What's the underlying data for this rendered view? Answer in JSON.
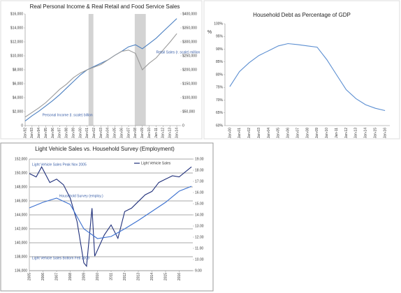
{
  "chart_data": [
    {
      "type": "line",
      "title": "Real Personal Income & Real Retail and Food Service Sales",
      "x": [
        1992,
        1993,
        1994,
        1995,
        1996,
        1997,
        1998,
        1999,
        2000,
        2001,
        2002,
        2003,
        2004,
        2005,
        2006,
        2007,
        2008,
        2009,
        2010,
        2011,
        2012,
        2013,
        2014
      ],
      "xlim": [
        1992,
        2014.5
      ],
      "xticks": [
        {
          "value": 1992,
          "label": "Jan-92"
        },
        {
          "value": 1993,
          "label": "Jan-93"
        },
        {
          "value": 1994,
          "label": "Jan-94"
        },
        {
          "value": 1995,
          "label": "Jan-95"
        },
        {
          "value": 1996,
          "label": "Jan-96"
        },
        {
          "value": 1997,
          "label": "Jan-97"
        },
        {
          "value": 1998,
          "label": "Jan-98"
        },
        {
          "value": 1999,
          "label": "Jan-99"
        },
        {
          "value": 2000,
          "label": "Jan-00"
        },
        {
          "value": 2001,
          "label": "Jan-01"
        },
        {
          "value": 2002,
          "label": "Jan-02"
        },
        {
          "value": 2003,
          "label": "Jan-03"
        },
        {
          "value": 2004,
          "label": "Jan-04"
        },
        {
          "value": 2005,
          "label": "Jan-05"
        },
        {
          "value": 2006,
          "label": "Jan-06"
        },
        {
          "value": 2007,
          "label": "Jan-07"
        },
        {
          "value": 2008,
          "label": "Jan-08"
        },
        {
          "value": 2009,
          "label": "Jan-09"
        },
        {
          "value": 2010,
          "label": "Jan-10"
        },
        {
          "value": 2011,
          "label": "Jan-11"
        },
        {
          "value": 2012,
          "label": "Jan-12"
        },
        {
          "value": 2013,
          "label": "Jan-13"
        },
        {
          "value": 2014,
          "label": "Jan-14"
        }
      ],
      "ylim": [
        0,
        16000
      ],
      "yticks": [
        0,
        {
          "value": 2000,
          "label": "$2,000"
        },
        {
          "value": 4000,
          "label": "$4,000"
        },
        {
          "value": 6000,
          "label": "$6,000"
        },
        {
          "value": 8000,
          "label": "$8,000"
        },
        {
          "value": 10000,
          "label": "$10,000"
        },
        {
          "value": 12000,
          "label": "$12,000"
        },
        {
          "value": 14000,
          "label": "$14,000"
        },
        {
          "value": 16000,
          "label": "$16,000"
        }
      ],
      "y2lim": [
        0,
        400000
      ],
      "y2ticks": [
        0,
        {
          "value": 50000,
          "label": "$50,000"
        },
        {
          "value": 100000,
          "label": "$100,000"
        },
        {
          "value": 150000,
          "label": "$150,000"
        },
        {
          "value": 200000,
          "label": "$200,000"
        },
        {
          "value": 250000,
          "label": "$250,000"
        },
        {
          "value": 300000,
          "label": "$300,000"
        },
        {
          "value": 350000,
          "label": "$350,000"
        },
        {
          "value": 400000,
          "label": "$400,000"
        }
      ],
      "shaded_ranges": [
        [
          2001.2,
          2001.9
        ],
        [
          2007.9,
          2009.5
        ]
      ],
      "shade_color": "#d3d3d3",
      "series": [
        {
          "name": "Personal Income (l. scale) billion",
          "color": "#4a7fc1",
          "values": [
            660,
            1410,
            2070,
            2820,
            3580,
            4420,
            5370,
            6310,
            7250,
            8000,
            8470,
            8940,
            9410,
            10070,
            10640,
            11290,
            11580,
            11010,
            11760,
            12520,
            13460,
            14400,
            15340
          ]
        },
        {
          "name": "Retail Sales (r. scale) million",
          "color": "#9a9a9a",
          "axis": "y2",
          "values": [
            30600,
            47100,
            63500,
            82400,
            105900,
            129400,
            148200,
            171800,
            188200,
            200000,
            209400,
            218800,
            235300,
            251800,
            265900,
            270600,
            258800,
            200000,
            223500,
            242400,
            270600,
            298800,
            329400
          ]
        }
      ],
      "annotations": [
        {
          "text": "Personal Income (l. scale) billion",
          "x": 1994.5,
          "y": 1500
        },
        {
          "text": "Retail Sales (r. scale) million",
          "x": 2011,
          "y": 10500
        }
      ]
    },
    {
      "type": "line",
      "title": "Household Debt as Percentage of GDP",
      "ylabel": "%",
      "categories": [
        "Jan-00",
        "Jan-01",
        "Jan-02",
        "Jan-03",
        "Jan-04",
        "Jan-05",
        "Jan-06",
        "Jan-07",
        "Jan-08",
        "Jan-09",
        "Jan-10",
        "Jan-11",
        "Jan-12",
        "Jan-13",
        "Jan-14",
        "Jan-15",
        "Jan-16"
      ],
      "ylim": [
        60,
        100
      ],
      "yticks": [
        {
          "value": 60,
          "label": "60%"
        },
        {
          "value": 65,
          "label": "65%"
        },
        {
          "value": 70,
          "label": "70%"
        },
        {
          "value": 75,
          "label": "75%"
        },
        {
          "value": 80,
          "label": "80%"
        },
        {
          "value": 85,
          "label": "85%"
        },
        {
          "value": 90,
          "label": "90%"
        },
        {
          "value": 95,
          "label": "95%"
        },
        {
          "value": 100,
          "label": "100%"
        }
      ],
      "series": [
        {
          "name": "Household Debt",
          "color": "#5b8ed1",
          "values": [
            75.3,
            81.2,
            84.7,
            87.5,
            89.4,
            91.3,
            92.2,
            91.8,
            91.3,
            90.8,
            85.9,
            80.0,
            74.1,
            70.6,
            68.2,
            66.8,
            65.9
          ]
        }
      ]
    },
    {
      "type": "line",
      "title": "Light Vehicle Sales vs. Household Survey (Employment)",
      "grid": true,
      "xlim": [
        2005,
        2017
      ],
      "xticks": [
        2005,
        2006,
        2007,
        2008,
        2009,
        2010,
        2011,
        2012,
        2013,
        2014,
        2015,
        2016
      ],
      "ylim": [
        136000,
        152000
      ],
      "yticks": [
        {
          "value": 136000,
          "label": "136,000"
        },
        {
          "value": 138000,
          "label": "138,000"
        },
        {
          "value": 140000,
          "label": "140,000"
        },
        {
          "value": 142000,
          "label": "142,000"
        },
        {
          "value": 144000,
          "label": "144,000"
        },
        {
          "value": 146000,
          "label": "146,000"
        },
        {
          "value": 148000,
          "label": "148,000"
        },
        {
          "value": 150000,
          "label": "150,000"
        },
        {
          "value": 152000,
          "label": "152,000"
        }
      ],
      "y2lim": [
        9,
        19
      ],
      "y2ticks": [
        {
          "value": 9,
          "label": "9.00"
        },
        {
          "value": 10,
          "label": "10.00"
        },
        {
          "value": 11,
          "label": "11.00"
        },
        {
          "value": 12,
          "label": "12.00"
        },
        {
          "value": 13,
          "label": "13.00"
        },
        {
          "value": 14,
          "label": "14.00"
        },
        {
          "value": 15,
          "label": "15.00"
        },
        {
          "value": 16,
          "label": "16.00"
        },
        {
          "value": 17,
          "label": "17.00"
        },
        {
          "value": 18,
          "label": "18.00"
        },
        {
          "value": 19,
          "label": "19.00"
        }
      ],
      "series": [
        {
          "name": "Light Vehicle Sales",
          "color": "#1f2f7a",
          "axis": "y2",
          "x": [
            2005.0,
            2005.5,
            2005.9,
            2006.5,
            2007.0,
            2007.5,
            2008.0,
            2008.5,
            2009.0,
            2009.2,
            2009.6,
            2009.8,
            2010.5,
            2011.0,
            2011.5,
            2012.0,
            2012.5,
            2013.0,
            2013.5,
            2014.0,
            2014.5,
            2015.0,
            2015.5,
            2016.0,
            2016.9
          ],
          "values": [
            17.7,
            17.4,
            18.3,
            16.9,
            17.2,
            16.7,
            15.5,
            13.4,
            9.7,
            9.4,
            14.6,
            10.3,
            12.2,
            13.1,
            11.9,
            14.3,
            14.6,
            15.2,
            15.8,
            16.1,
            16.9,
            17.2,
            17.5,
            17.4,
            18.3
          ]
        },
        {
          "name": "Household Survey (employ.)",
          "color": "#3a6fcf",
          "x": [
            2005,
            2006,
            2007,
            2008,
            2009,
            2010,
            2011,
            2012,
            2013,
            2014,
            2015,
            2016,
            2016.9
          ],
          "values": [
            145000,
            145800,
            146400,
            145500,
            142000,
            140600,
            140900,
            142000,
            143200,
            144500,
            145800,
            147400,
            148100
          ]
        }
      ],
      "annotations": [
        {
          "text": "Light Vehicle Sales Peak Nov 2005",
          "x": 2005.2,
          "y": 151200
        },
        {
          "text": "Light Vehicle Sales Bottom Feb 2009",
          "x": 2005.2,
          "y": 137800
        },
        {
          "text": "Household Survey (employ.)",
          "x": 2007.2,
          "y": 146700
        }
      ]
    }
  ]
}
